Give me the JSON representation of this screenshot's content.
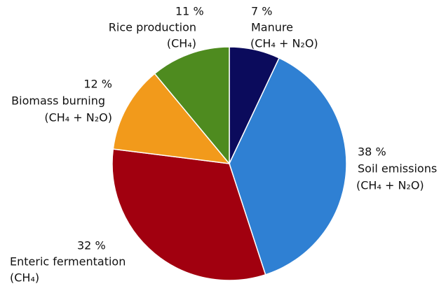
{
  "chart_data": {
    "type": "pie",
    "categories": [
      "Manure",
      "Soil emissions",
      "Enteric fermentation",
      "Biomass burning",
      "Rice production"
    ],
    "gases": [
      "(CH₄ + N₂O)",
      "(CH₄ + N₂O)",
      "(CH₄)",
      "(CH₄ + N₂O)",
      "(CH₄)"
    ],
    "values": [
      7,
      38,
      32,
      12,
      11
    ],
    "value_labels": [
      "7 %",
      "38 %",
      "32 %",
      "12 %",
      "11 %"
    ],
    "colors": [
      "#0b0b5c",
      "#2f80d3",
      "#a1000f",
      "#f29a1b",
      "#4e8b1f"
    ]
  }
}
